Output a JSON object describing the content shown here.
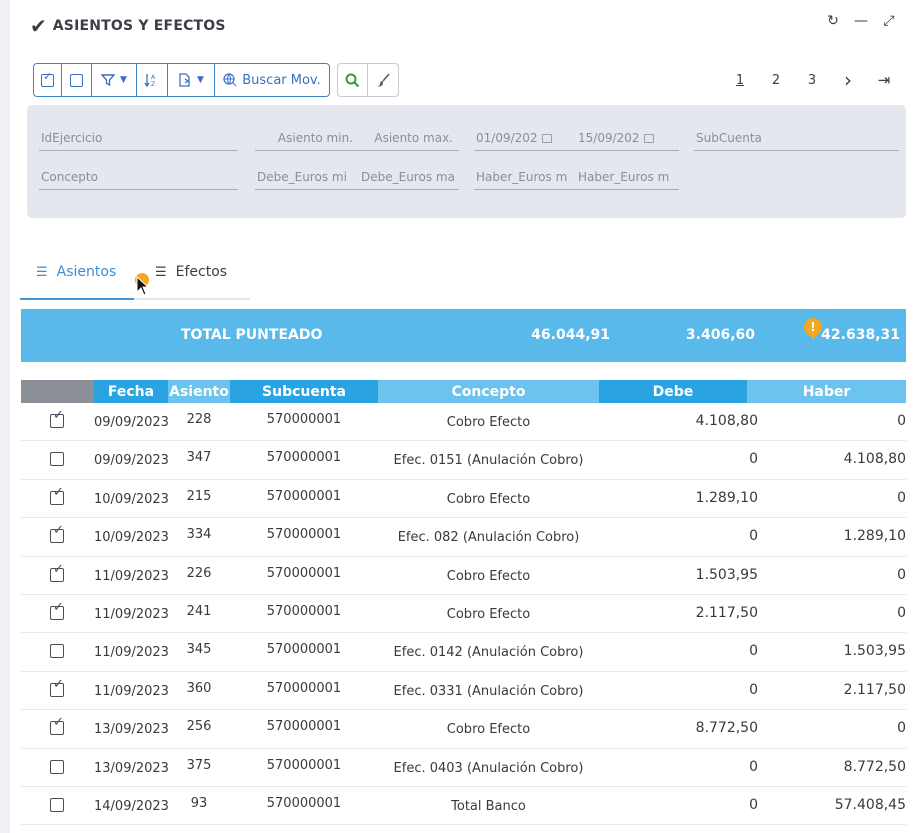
{
  "title": "ASIENTOS Y EFECTOS",
  "window_controls": {
    "refresh_icon": "↻",
    "minimize_icon": "—",
    "expand_icon": "⤢"
  },
  "toolbar": {
    "search_label": "Buscar Mov."
  },
  "pager": {
    "pages": [
      "1",
      "2",
      "3"
    ],
    "next": "›",
    "last": "⇥"
  },
  "filters": {
    "id_ejercicio": "IdEjercicio",
    "asiento_min": "Asiento min.",
    "asiento_max": "Asiento max.",
    "fecha_desde": "01/09/202",
    "fecha_hasta": "15/09/202",
    "subcuenta": "SubCuenta",
    "concepto": "Concepto",
    "debe_min": "Debe_Euros mi",
    "debe_max": "Debe_Euros ma",
    "haber_min": "Haber_Euros m",
    "haber_max": "Haber_Euros m"
  },
  "tabs": {
    "asientos": "Asientos",
    "efectos": "Efectos"
  },
  "total": {
    "label": "TOTAL PUNTEADO",
    "debe": "46.044,91",
    "haber": "3.406,60",
    "saldo": "42.638,31",
    "warn": "!"
  },
  "columns": {
    "fecha": "Fecha",
    "asiento": "Asiento",
    "subcuenta": "Subcuenta",
    "concepto": "Concepto",
    "debe": "Debe",
    "haber": "Haber"
  },
  "rows": [
    {
      "checked": true,
      "fecha": "09/09/2023",
      "asiento": "228",
      "subcuenta": "570000001",
      "concepto": "Cobro Efecto",
      "debe": "4.108,80",
      "haber": "0"
    },
    {
      "checked": false,
      "fecha": "09/09/2023",
      "asiento": "347",
      "subcuenta": "570000001",
      "concepto": "Efec. 0151 (Anulación Cobro)",
      "debe": "0",
      "haber": "4.108,80"
    },
    {
      "checked": true,
      "fecha": "10/09/2023",
      "asiento": "215",
      "subcuenta": "570000001",
      "concepto": "Cobro Efecto",
      "debe": "1.289,10",
      "haber": "0"
    },
    {
      "checked": true,
      "fecha": "10/09/2023",
      "asiento": "334",
      "subcuenta": "570000001",
      "concepto": "Efec. 082 (Anulación Cobro)",
      "debe": "0",
      "haber": "1.289,10"
    },
    {
      "checked": true,
      "fecha": "11/09/2023",
      "asiento": "226",
      "subcuenta": "570000001",
      "concepto": "Cobro Efecto",
      "debe": "1.503,95",
      "haber": "0"
    },
    {
      "checked": true,
      "fecha": "11/09/2023",
      "asiento": "241",
      "subcuenta": "570000001",
      "concepto": "Cobro Efecto",
      "debe": "2.117,50",
      "haber": "0"
    },
    {
      "checked": false,
      "fecha": "11/09/2023",
      "asiento": "345",
      "subcuenta": "570000001",
      "concepto": "Efec. 0142 (Anulación Cobro)",
      "debe": "0",
      "haber": "1.503,95"
    },
    {
      "checked": true,
      "fecha": "11/09/2023",
      "asiento": "360",
      "subcuenta": "570000001",
      "concepto": "Efec. 0331 (Anulación Cobro)",
      "debe": "0",
      "haber": "2.117,50"
    },
    {
      "checked": true,
      "fecha": "13/09/2023",
      "asiento": "256",
      "subcuenta": "570000001",
      "concepto": "Cobro Efecto",
      "debe": "8.772,50",
      "haber": "0"
    },
    {
      "checked": false,
      "fecha": "13/09/2023",
      "asiento": "375",
      "subcuenta": "570000001",
      "concepto": "Efec. 0403 (Anulación Cobro)",
      "debe": "0",
      "haber": "8.772,50"
    },
    {
      "checked": false,
      "fecha": "14/09/2023",
      "asiento": "93",
      "subcuenta": "570000001",
      "concepto": "Total Banco",
      "debe": "0",
      "haber": "57.408,45"
    }
  ],
  "colors": {
    "header_dark": "#2aa3e3",
    "header_light": "#6cc4ee",
    "total_bg": "#59b9ea",
    "accent": "#3b82c4",
    "warning": "#f2a91f"
  }
}
